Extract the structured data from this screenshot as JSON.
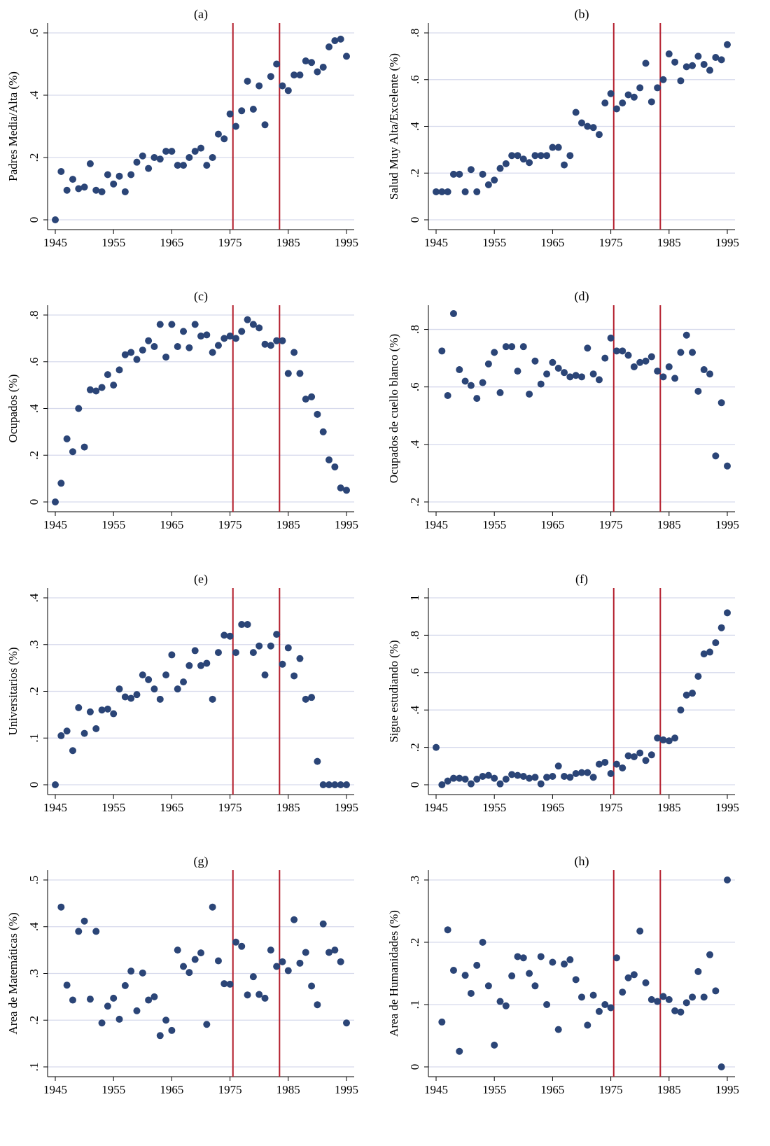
{
  "charts": {
    "panels": [
      {
        "title": "(a)",
        "ylabel": "Padres Media/Alta (%)"
      },
      {
        "title": "(b)",
        "ylabel": "Salud Muy Alta/Excelente (%)"
      },
      {
        "title": "(c)",
        "ylabel": "Ocupados (%)"
      },
      {
        "title": "(d)",
        "ylabel": "Ocupados de cuello blanco (%)"
      },
      {
        "title": "(e)",
        "ylabel": "Universitarios (%)"
      },
      {
        "title": "(f)",
        "ylabel": "Sigue estudiando (%)"
      },
      {
        "title": "(g)",
        "ylabel": "Area de Matemáticas (%)"
      },
      {
        "title": "(h)",
        "ylabel": "Area de Humanidades (%)"
      }
    ]
  },
  "colors": {
    "point": "#2b4577",
    "vline": "#b41f2e",
    "grid": "#d6d9ec",
    "axis": "#000000"
  },
  "chart_data": [
    {
      "type": "scatter",
      "title": "(a)",
      "xlabel": "",
      "ylabel": "Padres Media/Alta (%)",
      "xlim": [
        1945,
        1995
      ],
      "ylim": [
        0,
        0.6
      ],
      "xticks": [
        1945,
        1955,
        1965,
        1975,
        1985,
        1995
      ],
      "yticks": [
        0,
        0.2,
        0.4,
        0.6
      ],
      "ytick_labels": [
        "0",
        ".2",
        ".4",
        ".6"
      ],
      "vlines": [
        1975.5,
        1983.5
      ],
      "grid": true,
      "x": [
        1945,
        1946,
        1947,
        1948,
        1949,
        1950,
        1951,
        1952,
        1953,
        1954,
        1955,
        1956,
        1957,
        1958,
        1959,
        1960,
        1961,
        1962,
        1963,
        1964,
        1965,
        1966,
        1967,
        1968,
        1969,
        1970,
        1971,
        1972,
        1973,
        1974,
        1975,
        1976,
        1977,
        1978,
        1979,
        1980,
        1981,
        1982,
        1983,
        1984,
        1985,
        1986,
        1987,
        1988,
        1989,
        1990,
        1991,
        1992,
        1993,
        1994,
        1995
      ],
      "y": [
        0,
        0.155,
        0.095,
        0.13,
        0.1,
        0.105,
        0.18,
        0.095,
        0.09,
        0.145,
        0.115,
        0.14,
        0.09,
        0.145,
        0.185,
        0.205,
        0.165,
        0.2,
        0.195,
        0.22,
        0.22,
        0.175,
        0.175,
        0.2,
        0.22,
        0.23,
        0.175,
        0.2,
        0.275,
        0.26,
        0.34,
        0.3,
        0.35,
        0.445,
        0.355,
        0.43,
        0.305,
        0.46,
        0.5,
        0.43,
        0.415,
        0.465,
        0.465,
        0.51,
        0.505,
        0.475,
        0.49,
        0.555,
        0.575,
        0.58,
        0.525
      ]
    },
    {
      "type": "scatter",
      "title": "(b)",
      "xlabel": "",
      "ylabel": "Salud Muy Alta/Excelente (%)",
      "xlim": [
        1945,
        1995
      ],
      "ylim": [
        0,
        0.8
      ],
      "xticks": [
        1945,
        1955,
        1965,
        1975,
        1985,
        1995
      ],
      "yticks": [
        0,
        0.2,
        0.4,
        0.6,
        0.8
      ],
      "ytick_labels": [
        "0",
        ".2",
        ".4",
        ".6",
        ".8"
      ],
      "vlines": [
        1975.5,
        1983.5
      ],
      "grid": true,
      "x": [
        1945,
        1946,
        1947,
        1948,
        1949,
        1950,
        1951,
        1952,
        1953,
        1954,
        1955,
        1956,
        1957,
        1958,
        1959,
        1960,
        1961,
        1962,
        1963,
        1964,
        1965,
        1966,
        1967,
        1968,
        1969,
        1970,
        1971,
        1972,
        1973,
        1974,
        1975,
        1976,
        1977,
        1978,
        1979,
        1980,
        1981,
        1982,
        1983,
        1984,
        1985,
        1986,
        1987,
        1988,
        1989,
        1990,
        1991,
        1992,
        1993,
        1994,
        1995
      ],
      "y": [
        0.12,
        0.12,
        0.12,
        0.195,
        0.195,
        0.12,
        0.215,
        0.12,
        0.195,
        0.15,
        0.17,
        0.22,
        0.24,
        0.275,
        0.275,
        0.26,
        0.245,
        0.275,
        0.275,
        0.275,
        0.31,
        0.31,
        0.235,
        0.275,
        0.46,
        0.415,
        0.4,
        0.395,
        0.365,
        0.5,
        0.54,
        0.475,
        0.5,
        0.535,
        0.525,
        0.565,
        0.67,
        0.505,
        0.565,
        0.6,
        0.71,
        0.675,
        0.595,
        0.655,
        0.66,
        0.7,
        0.665,
        0.64,
        0.695,
        0.685,
        0.75
      ]
    },
    {
      "type": "scatter",
      "title": "(c)",
      "xlabel": "",
      "ylabel": "Ocupados (%)",
      "xlim": [
        1945,
        1995
      ],
      "ylim": [
        0,
        0.8
      ],
      "xticks": [
        1945,
        1955,
        1965,
        1975,
        1985,
        1995
      ],
      "yticks": [
        0,
        0.2,
        0.4,
        0.6,
        0.8
      ],
      "ytick_labels": [
        "0",
        ".2",
        ".4",
        ".6",
        ".8"
      ],
      "vlines": [
        1975.5,
        1983.5
      ],
      "grid": true,
      "x": [
        1945,
        1946,
        1947,
        1948,
        1949,
        1950,
        1951,
        1952,
        1953,
        1954,
        1955,
        1956,
        1957,
        1958,
        1959,
        1960,
        1961,
        1962,
        1963,
        1964,
        1965,
        1966,
        1967,
        1968,
        1969,
        1970,
        1971,
        1972,
        1973,
        1974,
        1975,
        1976,
        1977,
        1978,
        1979,
        1980,
        1981,
        1982,
        1983,
        1984,
        1985,
        1986,
        1987,
        1988,
        1989,
        1990,
        1991,
        1992,
        1993,
        1994,
        1995
      ],
      "y": [
        0,
        0.08,
        0.27,
        0.215,
        0.4,
        0.235,
        0.48,
        0.475,
        0.49,
        0.545,
        0.5,
        0.565,
        0.63,
        0.64,
        0.61,
        0.65,
        0.69,
        0.665,
        0.76,
        0.62,
        0.76,
        0.665,
        0.73,
        0.66,
        0.76,
        0.71,
        0.715,
        0.64,
        0.67,
        0.7,
        0.71,
        0.7,
        0.73,
        0.78,
        0.76,
        0.745,
        0.675,
        0.67,
        0.69,
        0.69,
        0.55,
        0.64,
        0.55,
        0.44,
        0.45,
        0.375,
        0.3,
        0.18,
        0.15,
        0.06,
        0.05
      ]
    },
    {
      "type": "scatter",
      "title": "(d)",
      "xlabel": "",
      "ylabel": "Ocupados de cuello blanco (%)",
      "xlim": [
        1945,
        1995
      ],
      "ylim": [
        0.2,
        0.85
      ],
      "xticks": [
        1945,
        1955,
        1965,
        1975,
        1985,
        1995
      ],
      "yticks": [
        0.2,
        0.4,
        0.6,
        0.8
      ],
      "ytick_labels": [
        ".2",
        ".4",
        ".6",
        ".8"
      ],
      "vlines": [
        1975.5,
        1983.5
      ],
      "grid": true,
      "x": [
        1946,
        1947,
        1948,
        1949,
        1950,
        1951,
        1952,
        1953,
        1954,
        1955,
        1956,
        1957,
        1958,
        1959,
        1960,
        1961,
        1962,
        1963,
        1964,
        1965,
        1966,
        1967,
        1968,
        1969,
        1970,
        1971,
        1972,
        1973,
        1974,
        1975,
        1976,
        1977,
        1978,
        1979,
        1980,
        1981,
        1982,
        1983,
        1984,
        1985,
        1986,
        1987,
        1988,
        1989,
        1990,
        1991,
        1992,
        1993,
        1994,
        1995
      ],
      "y": [
        0.725,
        0.57,
        0.855,
        0.66,
        0.62,
        0.605,
        0.56,
        0.615,
        0.68,
        0.72,
        0.58,
        0.74,
        0.74,
        0.655,
        0.74,
        0.575,
        0.69,
        0.61,
        0.645,
        0.685,
        0.665,
        0.65,
        0.635,
        0.64,
        0.635,
        0.735,
        0.645,
        0.625,
        0.7,
        0.77,
        0.725,
        0.725,
        0.71,
        0.67,
        0.685,
        0.69,
        0.705,
        0.655,
        0.635,
        0.67,
        0.63,
        0.72,
        0.78,
        0.72,
        0.585,
        0.66,
        0.645,
        0.36,
        0.545,
        0.325
      ]
    },
    {
      "type": "scatter",
      "title": "(e)",
      "xlabel": "",
      "ylabel": "Universitarios (%)",
      "xlim": [
        1945,
        1995
      ],
      "ylim": [
        0,
        0.4
      ],
      "xticks": [
        1945,
        1955,
        1965,
        1975,
        1985,
        1995
      ],
      "yticks": [
        0,
        0.1,
        0.2,
        0.3,
        0.4
      ],
      "ytick_labels": [
        "0",
        ".1",
        ".2",
        ".3",
        ".4"
      ],
      "vlines": [
        1975.5,
        1983.5
      ],
      "grid": true,
      "x": [
        1945,
        1946,
        1947,
        1948,
        1949,
        1950,
        1951,
        1952,
        1953,
        1954,
        1955,
        1956,
        1957,
        1958,
        1959,
        1960,
        1961,
        1962,
        1963,
        1964,
        1965,
        1966,
        1967,
        1968,
        1969,
        1970,
        1971,
        1972,
        1973,
        1974,
        1975,
        1976,
        1977,
        1978,
        1979,
        1980,
        1981,
        1982,
        1983,
        1984,
        1985,
        1986,
        1987,
        1988,
        1989,
        1990,
        1991,
        1992,
        1993,
        1994,
        1995
      ],
      "y": [
        0,
        0.105,
        0.115,
        0.073,
        0.165,
        0.11,
        0.156,
        0.12,
        0.16,
        0.162,
        0.152,
        0.205,
        0.188,
        0.185,
        0.193,
        0.235,
        0.225,
        0.205,
        0.183,
        0.235,
        0.278,
        0.205,
        0.22,
        0.255,
        0.287,
        0.255,
        0.26,
        0.183,
        0.283,
        0.32,
        0.318,
        0.283,
        0.343,
        0.343,
        0.283,
        0.297,
        0.235,
        0.297,
        0.322,
        0.258,
        0.293,
        0.233,
        0.27,
        0.183,
        0.187,
        0.05,
        0,
        0,
        0,
        0,
        0
      ]
    },
    {
      "type": "scatter",
      "title": "(f)",
      "xlabel": "",
      "ylabel": "Sigue estudiando (%)",
      "xlim": [
        1945,
        1995
      ],
      "ylim": [
        0,
        1
      ],
      "xticks": [
        1945,
        1955,
        1965,
        1975,
        1985,
        1995
      ],
      "yticks": [
        0,
        0.2,
        0.4,
        0.6,
        0.8,
        1
      ],
      "ytick_labels": [
        "0",
        ".2",
        ".4",
        ".6",
        ".8",
        "1"
      ],
      "vlines": [
        1975.5,
        1983.5
      ],
      "grid": true,
      "x": [
        1945,
        1946,
        1947,
        1948,
        1949,
        1950,
        1951,
        1952,
        1953,
        1954,
        1955,
        1956,
        1957,
        1958,
        1959,
        1960,
        1961,
        1962,
        1963,
        1964,
        1965,
        1966,
        1967,
        1968,
        1969,
        1970,
        1971,
        1972,
        1973,
        1974,
        1975,
        1976,
        1977,
        1978,
        1979,
        1980,
        1981,
        1982,
        1983,
        1984,
        1985,
        1986,
        1987,
        1988,
        1989,
        1990,
        1991,
        1992,
        1993,
        1994,
        1995
      ],
      "y": [
        0.2,
        0,
        0.02,
        0.035,
        0.035,
        0.03,
        0.005,
        0.03,
        0.045,
        0.05,
        0.035,
        0.005,
        0.03,
        0.055,
        0.05,
        0.045,
        0.035,
        0.04,
        0.005,
        0.04,
        0.045,
        0.1,
        0.045,
        0.04,
        0.06,
        0.065,
        0.065,
        0.04,
        0.11,
        0.12,
        0.06,
        0.11,
        0.09,
        0.155,
        0.15,
        0.17,
        0.13,
        0.16,
        0.25,
        0.24,
        0.235,
        0.25,
        0.4,
        0.48,
        0.49,
        0.58,
        0.7,
        0.71,
        0.76,
        0.84,
        0.92
      ]
    },
    {
      "type": "scatter",
      "title": "(g)",
      "xlabel": "",
      "ylabel": "Area de Matemáticas (%)",
      "xlim": [
        1945,
        1995
      ],
      "ylim": [
        0.1,
        0.5
      ],
      "xticks": [
        1945,
        1955,
        1965,
        1975,
        1985,
        1995
      ],
      "yticks": [
        0.1,
        0.2,
        0.3,
        0.4,
        0.5
      ],
      "ytick_labels": [
        ".1",
        ".2",
        ".3",
        ".4",
        ".5"
      ],
      "vlines": [
        1975.5,
        1983.5
      ],
      "grid": true,
      "x": [
        1946,
        1947,
        1948,
        1949,
        1950,
        1951,
        1952,
        1953,
        1954,
        1955,
        1956,
        1957,
        1958,
        1959,
        1960,
        1961,
        1962,
        1963,
        1964,
        1965,
        1966,
        1967,
        1968,
        1969,
        1970,
        1971,
        1972,
        1973,
        1974,
        1975,
        1976,
        1977,
        1978,
        1979,
        1980,
        1981,
        1982,
        1983,
        1984,
        1985,
        1986,
        1987,
        1988,
        1989,
        1990,
        1991,
        1992,
        1993,
        1994,
        1995
      ],
      "y": [
        0.442,
        0.275,
        0.243,
        0.39,
        0.412,
        0.245,
        0.39,
        0.194,
        0.23,
        0.247,
        0.202,
        0.274,
        0.305,
        0.22,
        0.301,
        0.243,
        0.25,
        0.167,
        0.2,
        0.178,
        0.35,
        0.315,
        0.302,
        0.33,
        0.344,
        0.191,
        0.442,
        0.327,
        0.278,
        0.277,
        0.367,
        0.358,
        0.254,
        0.293,
        0.255,
        0.247,
        0.35,
        0.315,
        0.325,
        0.306,
        0.415,
        0.322,
        0.345,
        0.273,
        0.233,
        0.406,
        0.345,
        0.35,
        0.325,
        0.194
      ]
    },
    {
      "type": "scatter",
      "title": "(h)",
      "xlabel": "",
      "ylabel": "Area de Humanidades (%)",
      "xlim": [
        1945,
        1995
      ],
      "ylim": [
        0,
        0.3
      ],
      "xticks": [
        1945,
        1955,
        1965,
        1975,
        1985,
        1995
      ],
      "yticks": [
        0,
        0.1,
        0.2,
        0.3
      ],
      "ytick_labels": [
        "0",
        ".1",
        ".2",
        ".3"
      ],
      "vlines": [
        1975.5,
        1983.5
      ],
      "grid": true,
      "x": [
        1946,
        1947,
        1948,
        1949,
        1950,
        1951,
        1952,
        1953,
        1954,
        1955,
        1956,
        1957,
        1958,
        1959,
        1960,
        1961,
        1962,
        1963,
        1964,
        1965,
        1966,
        1967,
        1968,
        1969,
        1970,
        1971,
        1972,
        1973,
        1974,
        1975,
        1976,
        1977,
        1978,
        1979,
        1980,
        1981,
        1982,
        1983,
        1984,
        1985,
        1986,
        1987,
        1988,
        1989,
        1990,
        1991,
        1992,
        1993,
        1994,
        1995
      ],
      "y": [
        0.072,
        0.22,
        0.155,
        0.025,
        0.147,
        0.118,
        0.163,
        0.2,
        0.13,
        0.035,
        0.105,
        0.098,
        0.146,
        0.177,
        0.175,
        0.15,
        0.13,
        0.177,
        0.1,
        0.168,
        0.06,
        0.165,
        0.172,
        0.14,
        0.112,
        0.067,
        0.115,
        0.089,
        0.1,
        0.095,
        0.175,
        0.12,
        0.143,
        0.148,
        0.218,
        0.135,
        0.108,
        0.105,
        0.113,
        0.108,
        0.09,
        0.088,
        0.103,
        0.112,
        0.153,
        0.112,
        0.18,
        0.122,
        0,
        0.3
      ]
    }
  ]
}
